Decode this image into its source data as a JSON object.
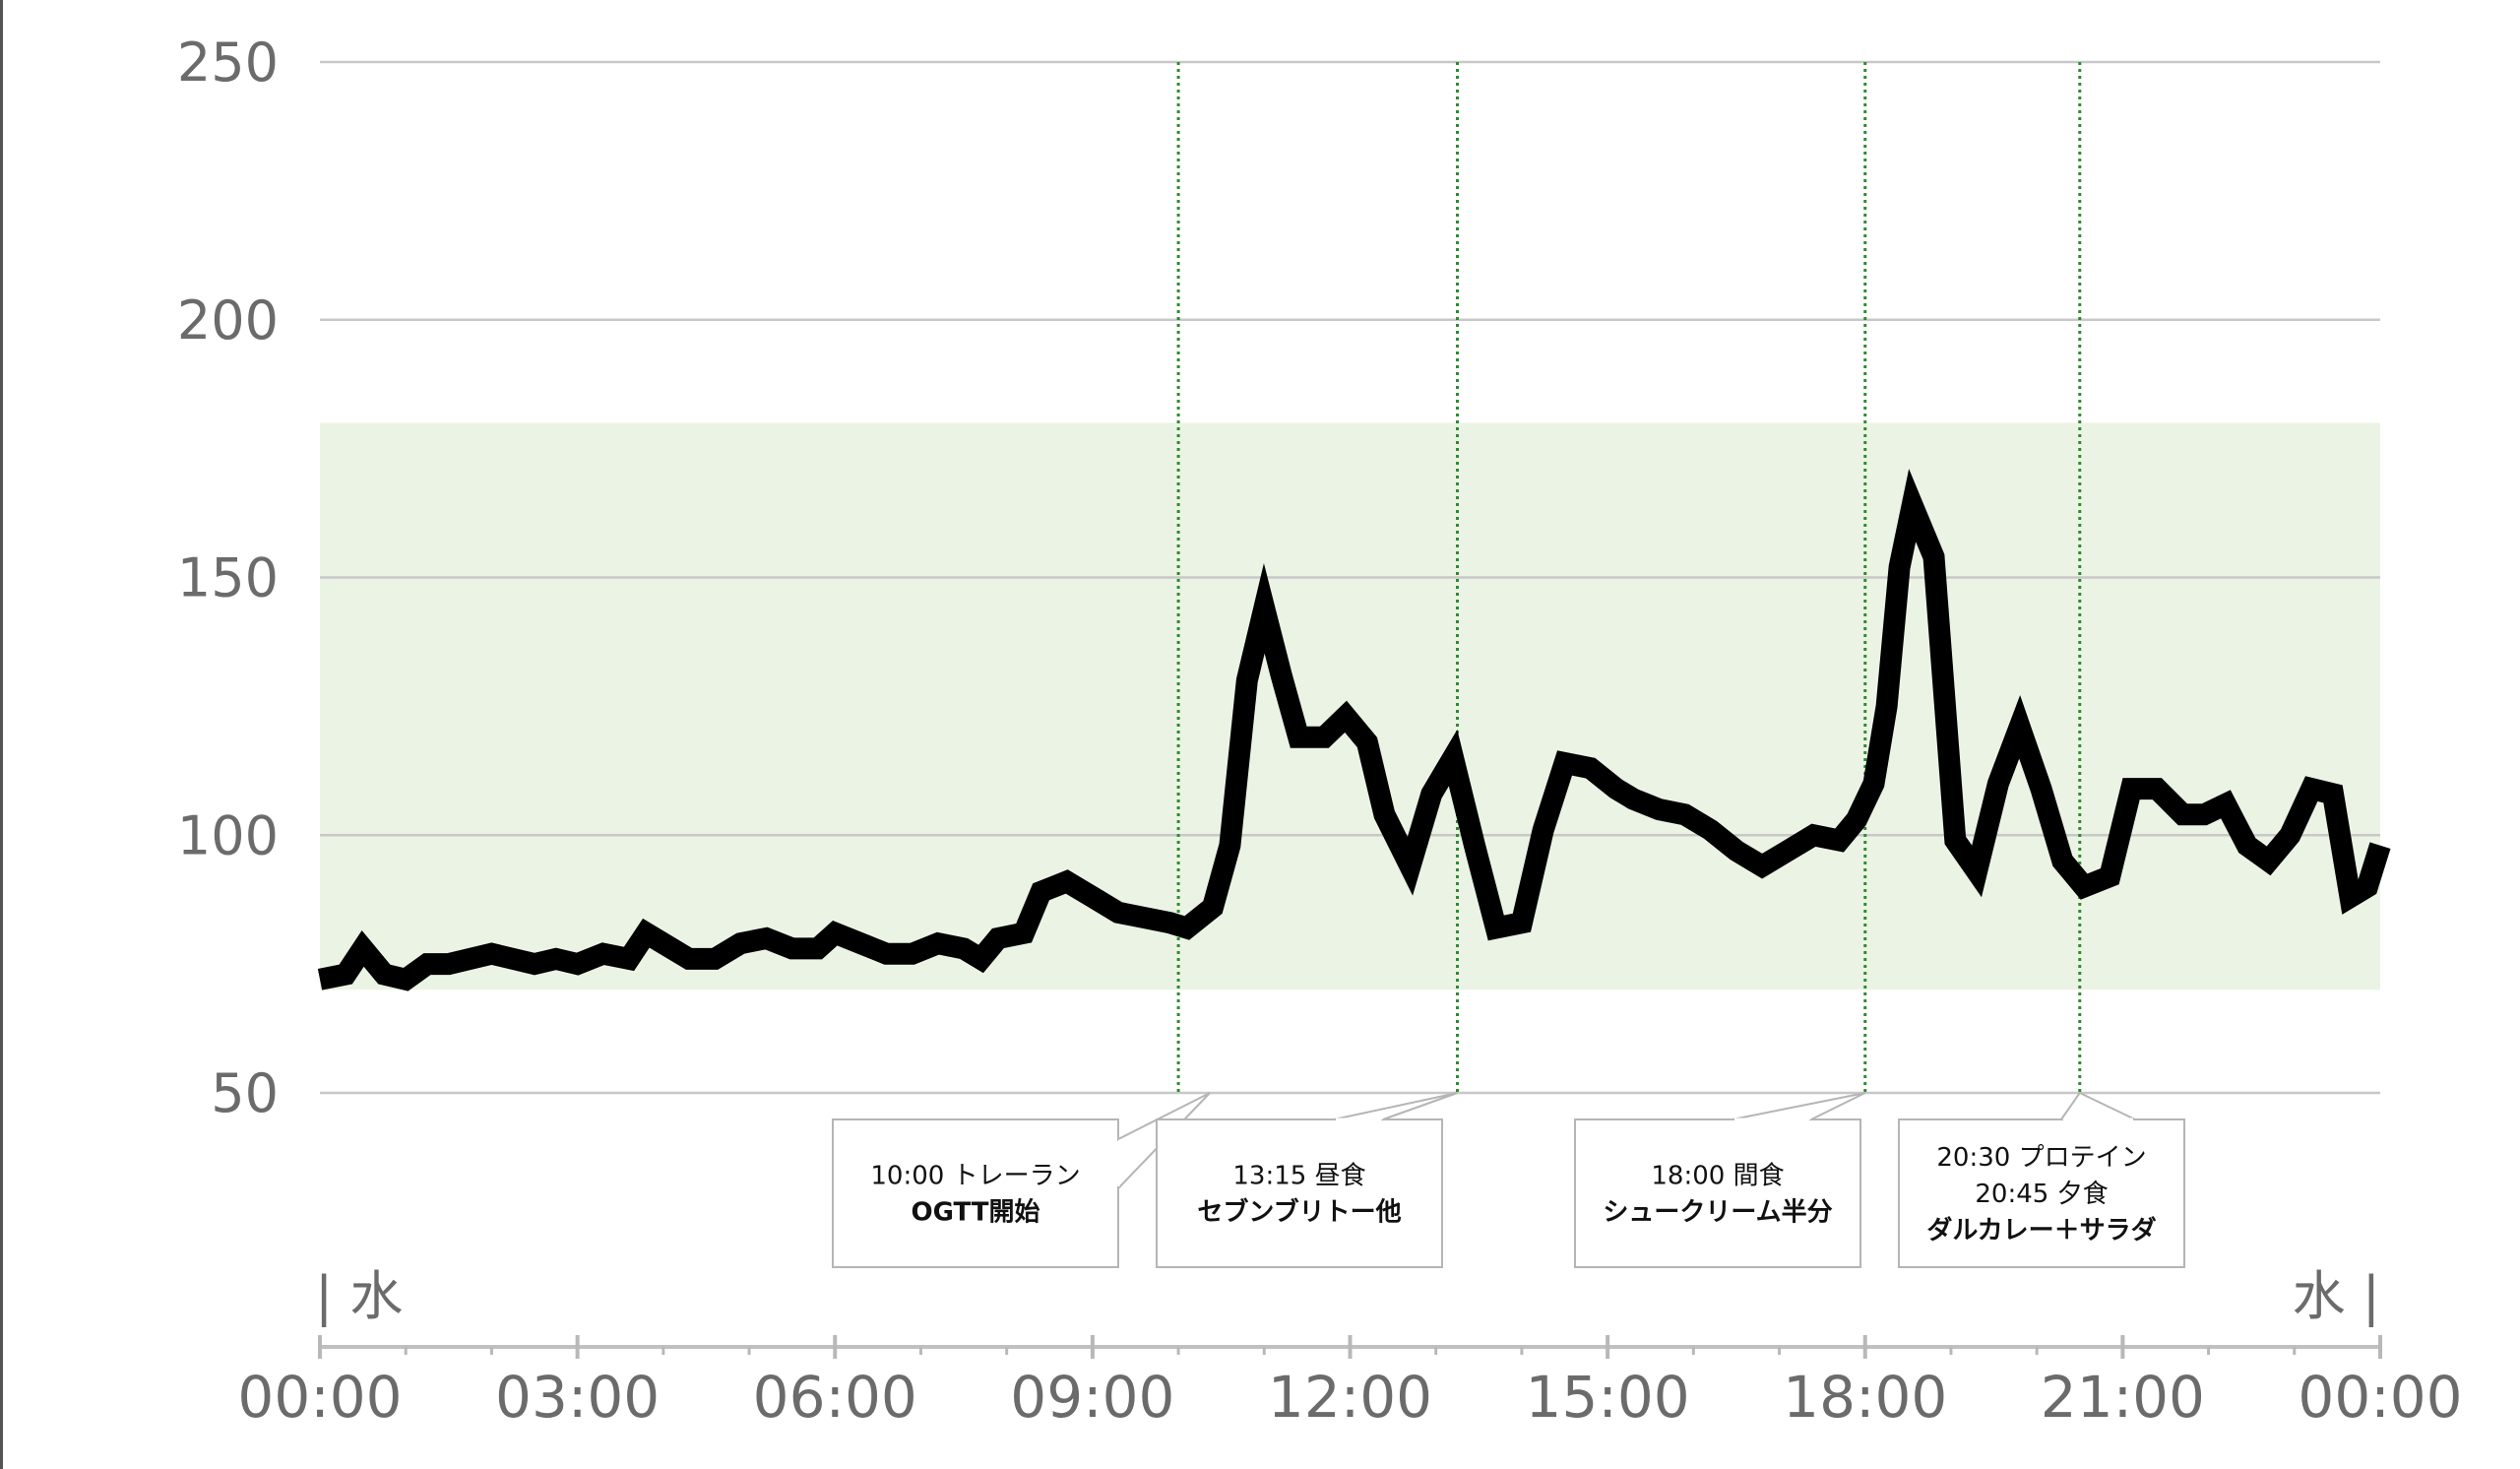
{
  "chart_data": {
    "type": "line",
    "title": "",
    "xlabel": "",
    "ylabel": "",
    "ylim": [
      50,
      250
    ],
    "xlim": [
      "00:00",
      "24:00"
    ],
    "yticks": [
      "250",
      "200",
      "150",
      "100",
      "50"
    ],
    "xticks": [
      "00:00",
      "03:00",
      "06:00",
      "09:00",
      "12:00",
      "15:00",
      "18:00",
      "21:00",
      "00:00"
    ],
    "day_labels": {
      "start": "| 水",
      "end": "水 |"
    },
    "target_range": [
      70,
      180
    ],
    "grid": true,
    "series": [
      {
        "color": "#000000",
        "points": [
          [
            0.0,
            72
          ],
          [
            0.3,
            73
          ],
          [
            0.5,
            78
          ],
          [
            0.75,
            73
          ],
          [
            1.0,
            72
          ],
          [
            1.25,
            75
          ],
          [
            1.5,
            75
          ],
          [
            2.0,
            77
          ],
          [
            2.5,
            75
          ],
          [
            2.75,
            76
          ],
          [
            3.0,
            75
          ],
          [
            3.3,
            77
          ],
          [
            3.6,
            76
          ],
          [
            3.8,
            81
          ],
          [
            4.0,
            79
          ],
          [
            4.3,
            76
          ],
          [
            4.6,
            76
          ],
          [
            4.9,
            79
          ],
          [
            5.2,
            80
          ],
          [
            5.5,
            78
          ],
          [
            5.8,
            78
          ],
          [
            6.0,
            81
          ],
          [
            6.3,
            79
          ],
          [
            6.6,
            77
          ],
          [
            6.9,
            77
          ],
          [
            7.2,
            79
          ],
          [
            7.5,
            78
          ],
          [
            7.7,
            76
          ],
          [
            7.9,
            80
          ],
          [
            8.2,
            81
          ],
          [
            8.4,
            89
          ],
          [
            8.7,
            91
          ],
          [
            9.0,
            88
          ],
          [
            9.3,
            85
          ],
          [
            9.6,
            84
          ],
          [
            9.9,
            83
          ],
          [
            10.1,
            82
          ],
          [
            10.4,
            86
          ],
          [
            10.6,
            98
          ],
          [
            10.8,
            130
          ],
          [
            11.0,
            144
          ],
          [
            11.2,
            131
          ],
          [
            11.4,
            119
          ],
          [
            11.7,
            119
          ],
          [
            11.95,
            123
          ],
          [
            12.2,
            118
          ],
          [
            12.4,
            104
          ],
          [
            12.7,
            94
          ],
          [
            12.95,
            108
          ],
          [
            13.2,
            115
          ],
          [
            13.45,
            98
          ],
          [
            13.7,
            82
          ],
          [
            14.0,
            83
          ],
          [
            14.25,
            101
          ],
          [
            14.5,
            114
          ],
          [
            14.8,
            113
          ],
          [
            15.1,
            109
          ],
          [
            15.3,
            107
          ],
          [
            15.6,
            105
          ],
          [
            15.9,
            104
          ],
          [
            16.2,
            101
          ],
          [
            16.5,
            97
          ],
          [
            16.8,
            94
          ],
          [
            17.1,
            97
          ],
          [
            17.4,
            100
          ],
          [
            17.7,
            99
          ],
          [
            17.9,
            103
          ],
          [
            18.1,
            110
          ],
          [
            18.25,
            125
          ],
          [
            18.4,
            152
          ],
          [
            18.55,
            164
          ],
          [
            18.8,
            154
          ],
          [
            19.05,
            99
          ],
          [
            19.3,
            93
          ],
          [
            19.55,
            110
          ],
          [
            19.8,
            121
          ],
          [
            20.05,
            109
          ],
          [
            20.3,
            95
          ],
          [
            20.55,
            90
          ],
          [
            20.85,
            92
          ],
          [
            21.1,
            109
          ],
          [
            21.4,
            109
          ],
          [
            21.7,
            104
          ],
          [
            21.95,
            104
          ],
          [
            22.2,
            106
          ],
          [
            22.45,
            98
          ],
          [
            22.7,
            95
          ],
          [
            22.95,
            100
          ],
          [
            23.2,
            109
          ],
          [
            23.45,
            108
          ],
          [
            23.65,
            88
          ],
          [
            23.85,
            90
          ],
          [
            24.0,
            98
          ]
        ]
      }
    ],
    "annotations": [
      {
        "time": 10.0,
        "lines": [
          "10:00 トレーラン",
          "OGTT開始"
        ]
      },
      {
        "time": 13.25,
        "lines": [
          "13:15 昼食",
          "セブンブリトー他"
        ]
      },
      {
        "time": 18.0,
        "lines": [
          "18:00 間食",
          "シュークリーム半分"
        ]
      },
      {
        "time": 20.5,
        "lines": [
          "20:30 プロテイン",
          "20:45 夕食",
          "ダルカレー＋サラダ"
        ]
      }
    ],
    "colors": {
      "line": "#000000",
      "target_band": "#ebf4e4",
      "grid": "#c8c8c8",
      "event_marker": "#2e8b2e",
      "tick_text": "#6b6b6b"
    }
  }
}
